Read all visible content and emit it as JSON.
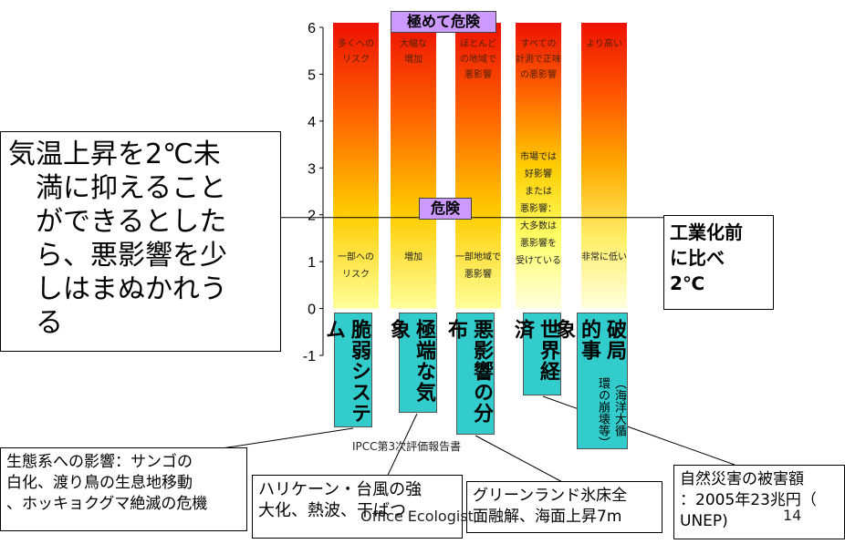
{
  "chart_data": {
    "type": "bar",
    "ylim": [
      -1,
      6
    ],
    "yticks": [
      6,
      5,
      4,
      3,
      2,
      1,
      0,
      -1
    ],
    "categories": [
      "脆弱システム",
      "極端な気象",
      "悪影響の分布",
      "世界経済",
      "破局的事象"
    ],
    "threshold_line": 2,
    "bars": [
      {
        "top_label": "多くへの\nリスク",
        "bottom_label": "一部への\nリスク",
        "colors": [
          "#ffff99",
          "#ffcc00",
          "#ff6600",
          "#ee1100"
        ]
      },
      {
        "top_label": "大幅な\n増加",
        "bottom_label": "増加",
        "colors": [
          "#ffff99",
          "#ffcc00",
          "#ff6600",
          "#ee1100"
        ]
      },
      {
        "top_label": "ほとんど\nの地域で\n悪影響",
        "bottom_label": "一部地域で\n悪影響",
        "colors": [
          "#ffff99",
          "#ffcc00",
          "#ff6600",
          "#ee1100"
        ]
      },
      {
        "top_label": "すべての\n計測で正味\nの悪影響",
        "bottom_label": "市場では\n好影響\nまたは\n悪影響：\n大多数は\n悪影響を\n受けている",
        "colors": [
          "#ffffdd",
          "#ffff66",
          "#ffcc00",
          "#ff6600",
          "#ee1100"
        ]
      },
      {
        "top_label": "より高い",
        "bottom_label": "非常に低い",
        "colors": [
          "#ffffdd",
          "#ffee66",
          "#ffaa00",
          "#ff5500",
          "#ee1100"
        ]
      }
    ]
  },
  "tags": {
    "extreme": "極めて危険",
    "danger": "危険"
  },
  "categories_box": [
    {
      "main": "脆弱システム",
      "sub": ""
    },
    {
      "main": "極端な気象",
      "sub": ""
    },
    {
      "main": "悪影響の分布",
      "sub": ""
    },
    {
      "main": "世界経済",
      "sub": ""
    },
    {
      "main": "破局的事象",
      "sub": "（海洋大循環の崩壊等）"
    }
  ],
  "left_box": {
    "line1": "気温上昇を2℃未",
    "line2": "満に抑えること",
    "line3": "ができるとした",
    "line4": "ら、悪影響を少",
    "line5": "しはまぬかれう",
    "line6": "る"
  },
  "right_box": {
    "line1": "工業化前",
    "line2": "に比べ",
    "line3": "2℃"
  },
  "source": "IPCC第3次評価報告書",
  "callouts": [
    {
      "line1": "生態系への影響：サンゴの",
      "line2": "白化、渡り鳥の生息地移動",
      "line3": "、ホッキョクグマ絶滅の危機"
    },
    {
      "line1": "ハリケーン・台風の強",
      "line2": "大化、熱波、干ばつ"
    },
    {
      "line1": "グリーンランド氷床全",
      "line2": "面融解、海面上昇7m"
    },
    {
      "line1": "自然災害の被害額",
      "line2": "：2005年23兆円（",
      "line3": "UNEP)"
    }
  ],
  "footer": {
    "author": "Office Ecologist",
    "page": "14"
  }
}
